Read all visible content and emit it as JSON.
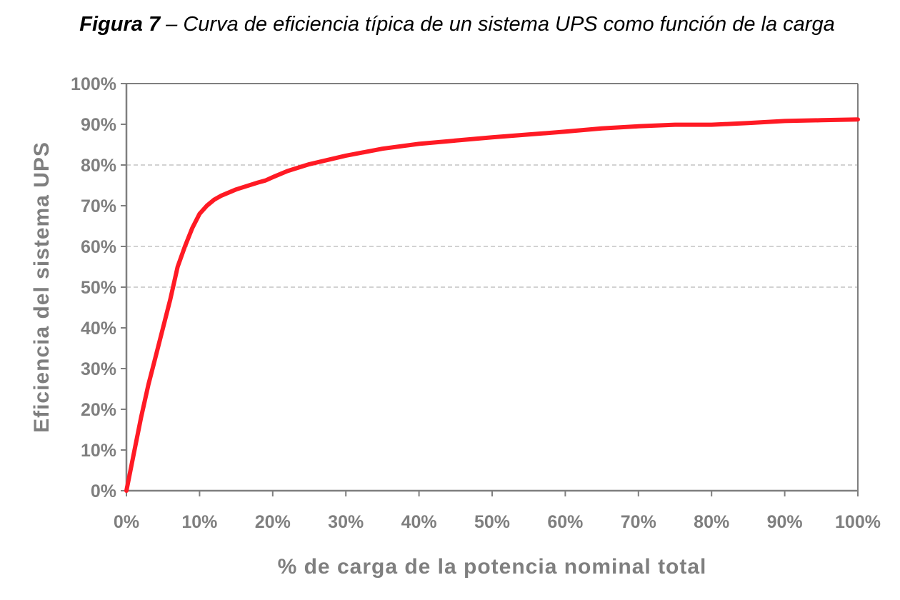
{
  "figure": {
    "label": "Figura 7",
    "separator": " – ",
    "caption": "Curva de eficiencia típica de un sistema UPS como función de la carga"
  },
  "chart_data": {
    "type": "line",
    "title": "Figura 7 – Curva de eficiencia típica de un sistema UPS como función de la carga",
    "xlabel": "% de carga de la potencia nominal total",
    "ylabel": "Eficiencia del sistema UPS",
    "xlim": [
      0,
      100
    ],
    "ylim": [
      0,
      100
    ],
    "x_ticks": [
      "0%",
      "10%",
      "20%",
      "30%",
      "40%",
      "50%",
      "60%",
      "70%",
      "80%",
      "90%",
      "100%"
    ],
    "y_ticks": [
      "0%",
      "10%",
      "20%",
      "30%",
      "40%",
      "50%",
      "60%",
      "70%",
      "80%",
      "90%",
      "100%"
    ],
    "gridlines_y": [
      50,
      60,
      80
    ],
    "line_color": "#ff1a24",
    "axis_color": "#7f7f7f",
    "series": [
      {
        "x": [
          0,
          1,
          2,
          3,
          4,
          5,
          6,
          7,
          8,
          9,
          10,
          11,
          12,
          13,
          15,
          18,
          19,
          20,
          22,
          25,
          30,
          35,
          40,
          45,
          50,
          55,
          60,
          65,
          70,
          75,
          80,
          85,
          90,
          95,
          100
        ],
        "y": [
          0,
          9,
          18,
          26,
          33,
          40,
          47,
          55,
          60,
          64.5,
          68,
          70,
          71.5,
          72.5,
          74,
          75.7,
          76.2,
          77,
          78.5,
          80.2,
          82.3,
          84,
          85.2,
          86,
          86.8,
          87.5,
          88.2,
          89,
          89.5,
          89.9,
          89.9,
          90.3,
          90.8,
          91,
          91.2
        ]
      }
    ]
  }
}
